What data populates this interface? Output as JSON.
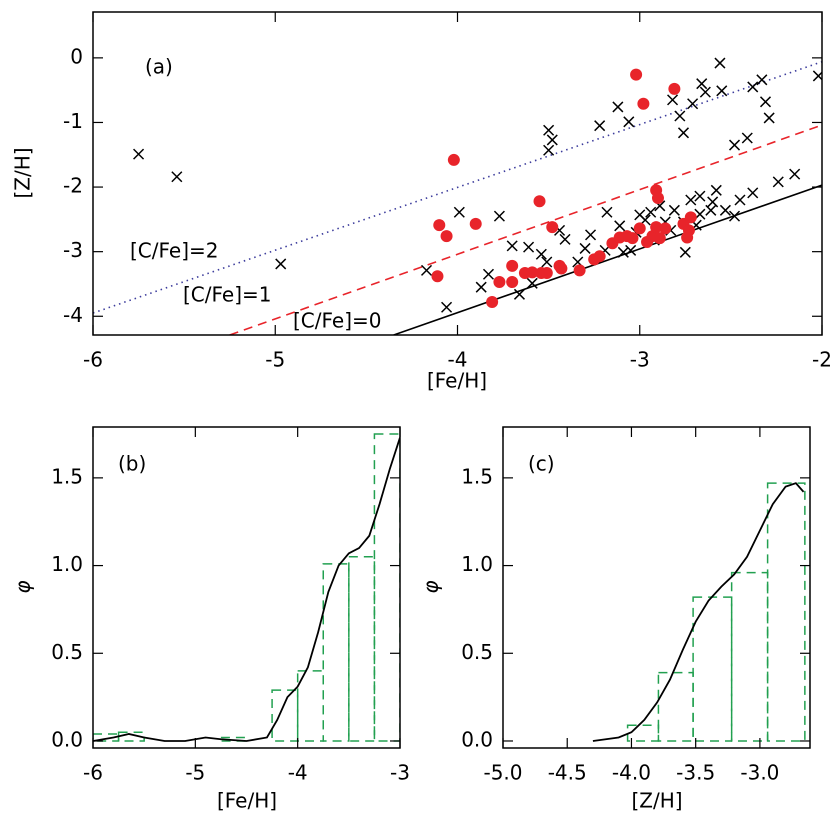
{
  "chart_data": [
    {
      "type": "scatter",
      "xlabel": "[Fe/H]",
      "ylabel": "[Z/H]",
      "xlim": [
        -6,
        -2
      ],
      "ylim": [
        -4.29,
        0.71
      ],
      "xticks": [
        -6,
        -5,
        -4,
        -3,
        -2
      ],
      "yticks": [
        -4,
        -3,
        -2,
        -1,
        0
      ],
      "annotations": [
        {
          "text": "(a)",
          "color": "#000000"
        },
        {
          "text": "[C/Fe]=2",
          "color": "#3c3c9c"
        },
        {
          "text": "[C/Fe]=1",
          "color": "#e8242a"
        },
        {
          "text": "[C/Fe]=0",
          "color": "#000000"
        }
      ],
      "series": [
        {
          "line": "dotted",
          "color": "#3c3c9c",
          "x": [
            -6,
            -2
          ],
          "values": [
            -3.95,
            -0.06
          ]
        },
        {
          "line": "dashed",
          "color": "#e8242a",
          "x": [
            -5.25,
            -2
          ],
          "values": [
            -4.29,
            -1.04
          ]
        },
        {
          "line": "solid",
          "color": "#000000",
          "x": [
            -4.35,
            -2
          ],
          "values": [
            -4.29,
            -1.97
          ]
        },
        {
          "marker": "cross",
          "color": "#000000",
          "x": [
            -5.75,
            -5.54,
            -4.97,
            -4.17,
            -4.06,
            -3.99,
            -3.87,
            -3.83,
            -3.77,
            -3.7,
            -3.66,
            -3.61,
            -3.59,
            -3.54,
            -3.51,
            -3.5,
            -3.5,
            -3.48,
            -3.41,
            -3.34,
            -3.3,
            -3.27,
            -3.22,
            -3.19,
            -3.12,
            -3.11,
            -3.06,
            -3.05,
            -3.02,
            -2.97,
            -2.94,
            -2.92,
            -2.89,
            -2.83,
            -2.82,
            -2.81,
            -2.78,
            -2.76,
            -2.75,
            -2.72,
            -2.71,
            -2.69,
            -2.67,
            -2.66,
            -2.64,
            -2.61,
            -2.6,
            -2.58,
            -2.56,
            -2.55,
            -2.53,
            -2.48,
            -2.45,
            -2.41,
            -2.38,
            -2.33,
            -2.31,
            -2.38,
            -2.29,
            -2.24,
            -2.15,
            -2.02,
            -3.18,
            -3.09,
            -3.44,
            -2.76,
            -2.67,
            -3.0,
            -2.86,
            -2.48
          ],
          "values": [
            -1.49,
            -1.84,
            -3.19,
            -3.29,
            -3.86,
            -2.39,
            -3.55,
            -3.35,
            -2.45,
            -2.91,
            -3.66,
            -2.93,
            -3.49,
            -3.04,
            -3.16,
            -1.43,
            -1.12,
            -1.27,
            -2.81,
            -3.16,
            -2.95,
            -2.74,
            -1.05,
            -2.98,
            -0.76,
            -2.6,
            -0.99,
            -2.98,
            -2.7,
            -2.51,
            -2.39,
            -2.82,
            -2.29,
            -2.67,
            -0.65,
            -2.36,
            -0.9,
            -1.16,
            -3.01,
            -2.2,
            -0.71,
            -2.59,
            -2.14,
            -0.4,
            -0.53,
            -2.36,
            -2.23,
            -2.05,
            -0.08,
            -0.51,
            -2.36,
            -1.35,
            -2.2,
            -1.24,
            -2.09,
            -0.34,
            -0.68,
            -0.45,
            -0.93,
            -1.92,
            -1.8,
            -0.28,
            -2.39,
            -3.01,
            -2.67,
            -2.54,
            -2.42,
            -2.43,
            -2.54,
            -2.45
          ]
        },
        {
          "marker": "dot",
          "color": "#e8242a",
          "x": [
            -4.11,
            -4.1,
            -4.06,
            -4.02,
            -3.9,
            -3.81,
            -3.77,
            -3.7,
            -3.7,
            -3.63,
            -3.59,
            -3.54,
            -3.51,
            -3.55,
            -3.48,
            -3.44,
            -3.43,
            -3.33,
            -3.25,
            -3.22,
            -3.15,
            -3.11,
            -3.07,
            -3.04,
            -3.02,
            -3.0,
            -2.98,
            -2.96,
            -2.93,
            -2.91,
            -2.91,
            -2.9,
            -2.89,
            -2.86,
            -2.81,
            -2.76,
            -2.74,
            -2.72,
            -2.73
          ],
          "values": [
            -3.38,
            -2.59,
            -2.76,
            -1.58,
            -2.57,
            -3.78,
            -3.47,
            -3.22,
            -3.47,
            -3.33,
            -3.32,
            -3.33,
            -3.33,
            -2.22,
            -2.62,
            -3.22,
            -3.26,
            -3.29,
            -3.12,
            -3.07,
            -2.87,
            -2.78,
            -2.76,
            -2.79,
            -0.26,
            -2.64,
            -0.71,
            -2.85,
            -2.76,
            -2.62,
            -2.05,
            -2.17,
            -2.79,
            -2.64,
            -0.48,
            -2.57,
            -2.78,
            -2.47,
            -2.67
          ]
        }
      ]
    },
    {
      "type": "histogram",
      "xlabel": "[Fe/H]",
      "ylabel": "φ",
      "xlim": [
        -6,
        -3
      ],
      "ylim": [
        -0.04,
        1.79
      ],
      "xticks": [
        -6,
        -5,
        -4,
        -3
      ],
      "yticks": [
        {
          "value": 0,
          "label": "0.0"
        },
        {
          "value": 0.5,
          "label": "0.5"
        },
        {
          "value": 1,
          "label": "1.0"
        },
        {
          "value": 1.5,
          "label": "1.5"
        }
      ],
      "annotations": [
        {
          "text": "(b)",
          "color": "#000000"
        }
      ],
      "color": "#22a050",
      "bins": [
        -6,
        -5.75,
        -5.5,
        -5.25,
        -5,
        -4.75,
        -4.5,
        -4.25,
        -4,
        -3.75,
        -3.5,
        -3.25,
        -3
      ],
      "values": [
        0.04,
        0.05,
        0,
        0,
        0,
        0.02,
        0,
        0.29,
        0.4,
        1.01,
        1.05,
        1.75
      ],
      "curve": {
        "color": "#000000",
        "x": [
          -6,
          -5.8,
          -5.65,
          -5.5,
          -5.3,
          -5.1,
          -4.9,
          -4.75,
          -4.5,
          -4.3,
          -4.2,
          -4.1,
          -4.0,
          -3.9,
          -3.8,
          -3.7,
          -3.6,
          -3.5,
          -3.4,
          -3.3,
          -3.2,
          -3.1,
          -3.0
        ],
        "values": [
          0,
          0.02,
          0.04,
          0.02,
          0,
          0,
          0.02,
          0.01,
          0,
          0.02,
          0.12,
          0.25,
          0.31,
          0.42,
          0.62,
          0.85,
          1.0,
          1.07,
          1.1,
          1.17,
          1.35,
          1.55,
          1.73
        ]
      }
    },
    {
      "type": "histogram",
      "xlabel": "[Z/H]",
      "ylabel": "φ",
      "xlim": [
        -5.0,
        -2.61
      ],
      "ylim": [
        -0.04,
        1.79
      ],
      "xticks": [
        {
          "value": -5,
          "label": "-5.0"
        },
        {
          "value": -4.5,
          "label": "-4.5"
        },
        {
          "value": -4,
          "label": "-4.0"
        },
        {
          "value": -3.5,
          "label": "-3.5"
        },
        {
          "value": -3,
          "label": "-3.0"
        }
      ],
      "yticks": [
        {
          "value": 0,
          "label": "0.0"
        },
        {
          "value": 0.5,
          "label": "0.5"
        },
        {
          "value": 1,
          "label": "1.0"
        },
        {
          "value": 1.5,
          "label": "1.5"
        }
      ],
      "annotations": [
        {
          "text": "(c)",
          "color": "#000000"
        }
      ],
      "color": "#22a050",
      "bins": [
        -4.03,
        -3.79,
        -3.52,
        -3.22,
        -2.94,
        -2.65
      ],
      "values": [
        0.09,
        0.39,
        0.82,
        0.96,
        1.47
      ],
      "curve": {
        "color": "#000000",
        "x": [
          -4.3,
          -4.1,
          -4.0,
          -3.9,
          -3.8,
          -3.7,
          -3.6,
          -3.5,
          -3.4,
          -3.3,
          -3.2,
          -3.1,
          -3.0,
          -2.9,
          -2.8,
          -2.72,
          -2.66
        ],
        "values": [
          0,
          0.02,
          0.05,
          0.12,
          0.22,
          0.35,
          0.52,
          0.68,
          0.8,
          0.88,
          0.95,
          1.05,
          1.2,
          1.35,
          1.45,
          1.47,
          1.42
        ]
      }
    }
  ]
}
